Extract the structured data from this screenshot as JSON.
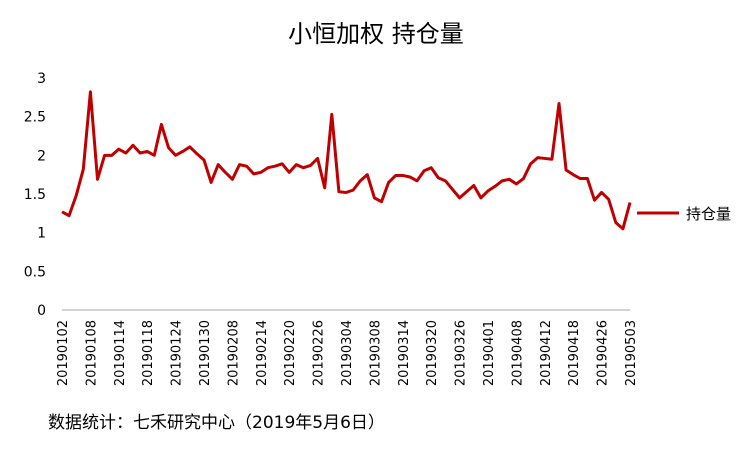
{
  "chart_data": {
    "type": "line",
    "title": "小恒加权 持仓量",
    "xlabel": "",
    "ylabel": "",
    "ylim": [
      0,
      3
    ],
    "yticks": [
      0,
      0.5,
      1,
      1.5,
      2,
      2.5,
      3
    ],
    "ytick_labels": [
      "0",
      "0.5",
      "1",
      "1.5",
      "2",
      "2.5",
      "3"
    ],
    "xtick_labels": [
      "20190102",
      "20190108",
      "20190114",
      "20190118",
      "20190124",
      "20190130",
      "20190208",
      "20190214",
      "20190220",
      "20190226",
      "20190304",
      "20190308",
      "20190314",
      "20190320",
      "20190326",
      "20190401",
      "20190408",
      "20190412",
      "20190418",
      "20190426",
      "20190503"
    ],
    "grid": false,
    "legend_position": "right",
    "series": [
      {
        "name": "持仓量",
        "color": "#C00000",
        "values": [
          1.27,
          1.22,
          1.48,
          1.82,
          2.82,
          1.69,
          2.0,
          2.0,
          2.08,
          2.03,
          2.13,
          2.03,
          2.05,
          2.0,
          2.4,
          2.1,
          2.0,
          2.05,
          2.11,
          2.02,
          1.94,
          1.65,
          1.88,
          1.78,
          1.69,
          1.88,
          1.86,
          1.76,
          1.78,
          1.84,
          1.86,
          1.89,
          1.78,
          1.88,
          1.84,
          1.87,
          1.96,
          1.58,
          2.53,
          1.53,
          1.52,
          1.55,
          1.67,
          1.75,
          1.45,
          1.4,
          1.65,
          1.74,
          1.74,
          1.72,
          1.67,
          1.8,
          1.84,
          1.71,
          1.67,
          1.56,
          1.45,
          1.53,
          1.61,
          1.45,
          1.54,
          1.6,
          1.67,
          1.69,
          1.63,
          1.7,
          1.89,
          1.97,
          1.96,
          1.95,
          2.67,
          1.81,
          1.75,
          1.7,
          1.7,
          1.42,
          1.52,
          1.43,
          1.13,
          1.05,
          1.39
        ]
      }
    ]
  },
  "source_note": "数据统计：七禾研究中心（2019年5月6日）"
}
